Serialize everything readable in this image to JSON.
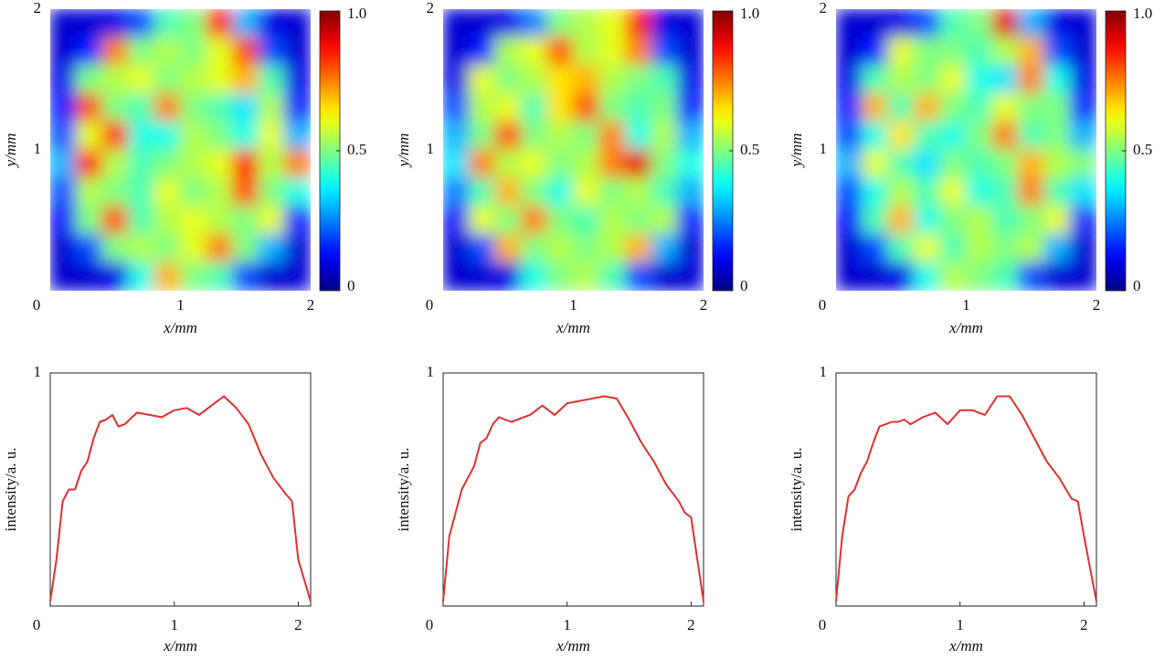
{
  "chart_data": [
    {
      "type": "heatmap",
      "xlabel": "x/mm",
      "ylabel": "y/mm",
      "xlim": [
        0,
        2
      ],
      "ylim": [
        0,
        2
      ],
      "xticks": [
        0,
        1,
        2
      ],
      "yticks": [
        1,
        2
      ],
      "colormap": "jet",
      "clim": [
        0,
        1
      ],
      "cticks": [
        0,
        0.5,
        {
          "value": 1,
          "label": "1.0"
        }
      ],
      "z": [
        [
          0.08,
          0.08,
          0.1,
          0.2,
          0.45,
          0.5,
          0.85,
          0.3,
          0.1,
          0.08
        ],
        [
          0.08,
          0.15,
          0.75,
          0.5,
          0.55,
          0.5,
          0.6,
          0.8,
          0.2,
          0.08
        ],
        [
          0.1,
          0.5,
          0.55,
          0.6,
          0.5,
          0.55,
          0.6,
          0.7,
          0.45,
          0.1
        ],
        [
          0.15,
          0.8,
          0.5,
          0.45,
          0.75,
          0.5,
          0.45,
          0.35,
          0.55,
          0.15
        ],
        [
          0.2,
          0.6,
          0.85,
          0.4,
          0.4,
          0.55,
          0.5,
          0.4,
          0.6,
          0.3
        ],
        [
          0.3,
          0.85,
          0.55,
          0.45,
          0.5,
          0.55,
          0.6,
          0.85,
          0.55,
          0.75
        ],
        [
          0.2,
          0.55,
          0.5,
          0.45,
          0.6,
          0.5,
          0.55,
          0.8,
          0.5,
          0.4
        ],
        [
          0.12,
          0.5,
          0.8,
          0.45,
          0.55,
          0.6,
          0.55,
          0.5,
          0.6,
          0.15
        ],
        [
          0.08,
          0.2,
          0.5,
          0.55,
          0.5,
          0.6,
          0.75,
          0.5,
          0.3,
          0.08
        ],
        [
          0.08,
          0.08,
          0.1,
          0.4,
          0.7,
          0.5,
          0.45,
          0.2,
          0.08,
          0.08
        ]
      ]
    },
    {
      "type": "heatmap",
      "xlabel": "x/mm",
      "ylabel": "y/mm",
      "xlim": [
        0,
        2
      ],
      "ylim": [
        0,
        2
      ],
      "xticks": [
        0,
        1,
        2
      ],
      "yticks": [
        1,
        2
      ],
      "colormap": "jet",
      "clim": [
        0,
        1
      ],
      "cticks": [
        0,
        0.5,
        {
          "value": 1,
          "label": "1.0"
        }
      ],
      "z": [
        [
          0.08,
          0.08,
          0.1,
          0.25,
          0.5,
          0.55,
          0.6,
          0.85,
          0.1,
          0.08
        ],
        [
          0.08,
          0.15,
          0.55,
          0.6,
          0.8,
          0.55,
          0.6,
          0.75,
          0.2,
          0.08
        ],
        [
          0.1,
          0.6,
          0.5,
          0.55,
          0.65,
          0.7,
          0.55,
          0.5,
          0.45,
          0.1
        ],
        [
          0.2,
          0.55,
          0.6,
          0.45,
          0.65,
          0.8,
          0.5,
          0.45,
          0.5,
          0.15
        ],
        [
          0.3,
          0.5,
          0.8,
          0.5,
          0.55,
          0.5,
          0.75,
          0.4,
          0.55,
          0.3
        ],
        [
          0.35,
          0.75,
          0.55,
          0.6,
          0.5,
          0.55,
          0.75,
          0.9,
          0.5,
          0.4
        ],
        [
          0.25,
          0.45,
          0.7,
          0.5,
          0.4,
          0.6,
          0.5,
          0.55,
          0.45,
          0.3
        ],
        [
          0.12,
          0.6,
          0.5,
          0.75,
          0.5,
          0.45,
          0.55,
          0.5,
          0.55,
          0.15
        ],
        [
          0.08,
          0.2,
          0.7,
          0.5,
          0.55,
          0.5,
          0.55,
          0.7,
          0.3,
          0.08
        ],
        [
          0.08,
          0.08,
          0.1,
          0.4,
          0.5,
          0.55,
          0.45,
          0.2,
          0.08,
          0.08
        ]
      ]
    },
    {
      "type": "heatmap",
      "xlabel": "x/mm",
      "ylabel": "y/mm",
      "xlim": [
        0,
        2
      ],
      "ylim": [
        0,
        2
      ],
      "xticks": [
        0,
        1,
        2
      ],
      "yticks": [
        1,
        2
      ],
      "colormap": "jet",
      "clim": [
        0,
        1
      ],
      "cticks": [
        0,
        0.5,
        {
          "value": 1,
          "label": "1.0"
        }
      ],
      "z": [
        [
          0.08,
          0.08,
          0.1,
          0.2,
          0.45,
          0.5,
          0.9,
          0.3,
          0.1,
          0.08
        ],
        [
          0.08,
          0.15,
          0.6,
          0.5,
          0.5,
          0.45,
          0.55,
          0.7,
          0.2,
          0.08
        ],
        [
          0.1,
          0.45,
          0.55,
          0.5,
          0.6,
          0.4,
          0.35,
          0.75,
          0.4,
          0.1
        ],
        [
          0.15,
          0.7,
          0.45,
          0.7,
          0.5,
          0.45,
          0.6,
          0.5,
          0.5,
          0.15
        ],
        [
          0.2,
          0.4,
          0.65,
          0.45,
          0.4,
          0.5,
          0.75,
          0.45,
          0.5,
          0.3
        ],
        [
          0.3,
          0.6,
          0.45,
          0.35,
          0.5,
          0.45,
          0.5,
          0.7,
          0.55,
          0.5
        ],
        [
          0.2,
          0.4,
          0.55,
          0.45,
          0.6,
          0.4,
          0.45,
          0.75,
          0.45,
          0.35
        ],
        [
          0.12,
          0.45,
          0.7,
          0.4,
          0.5,
          0.55,
          0.45,
          0.5,
          0.6,
          0.15
        ],
        [
          0.08,
          0.2,
          0.45,
          0.6,
          0.45,
          0.55,
          0.5,
          0.55,
          0.3,
          0.08
        ],
        [
          0.08,
          0.08,
          0.1,
          0.4,
          0.55,
          0.5,
          0.45,
          0.2,
          0.08,
          0.08
        ]
      ]
    },
    {
      "type": "line",
      "xlabel": "x/mm",
      "ylabel": "intensity/a. u.",
      "xlim": [
        0,
        2.1
      ],
      "ylim": [
        0,
        1
      ],
      "xticks": [
        0,
        1,
        2
      ],
      "yticks": [
        0,
        1
      ],
      "color": "#e03030",
      "x": [
        0,
        0.05,
        0.1,
        0.15,
        0.2,
        0.25,
        0.3,
        0.35,
        0.4,
        0.45,
        0.5,
        0.55,
        0.6,
        0.7,
        0.8,
        0.9,
        1.0,
        1.1,
        1.2,
        1.3,
        1.4,
        1.5,
        1.6,
        1.7,
        1.8,
        1.9,
        1.95,
        2.0,
        2.1
      ],
      "values": [
        0.02,
        0.2,
        0.45,
        0.5,
        0.5,
        0.58,
        0.62,
        0.72,
        0.79,
        0.8,
        0.82,
        0.77,
        0.78,
        0.83,
        0.82,
        0.81,
        0.84,
        0.85,
        0.82,
        0.86,
        0.9,
        0.85,
        0.78,
        0.65,
        0.55,
        0.48,
        0.45,
        0.2,
        0.02
      ]
    },
    {
      "type": "line",
      "xlabel": "x/mm",
      "ylabel": "intensity/a. u.",
      "xlim": [
        0,
        2.1
      ],
      "ylim": [
        0,
        1
      ],
      "xticks": [
        0,
        1,
        2
      ],
      "yticks": [
        0,
        1
      ],
      "color": "#e03030",
      "x": [
        0,
        0.05,
        0.1,
        0.15,
        0.2,
        0.25,
        0.3,
        0.35,
        0.4,
        0.45,
        0.5,
        0.55,
        0.6,
        0.7,
        0.8,
        0.9,
        1.0,
        1.1,
        1.2,
        1.3,
        1.4,
        1.5,
        1.6,
        1.7,
        1.8,
        1.9,
        1.95,
        2.0,
        2.1
      ],
      "values": [
        0.02,
        0.3,
        0.4,
        0.5,
        0.55,
        0.6,
        0.7,
        0.72,
        0.78,
        0.81,
        0.8,
        0.79,
        0.8,
        0.82,
        0.86,
        0.82,
        0.87,
        0.88,
        0.89,
        0.9,
        0.89,
        0.8,
        0.7,
        0.62,
        0.52,
        0.45,
        0.4,
        0.38,
        0.02
      ]
    },
    {
      "type": "line",
      "xlabel": "x/mm",
      "ylabel": "intensity/a. u.",
      "xlim": [
        0,
        2.1
      ],
      "ylim": [
        0,
        1
      ],
      "xticks": [
        0,
        1,
        2
      ],
      "yticks": [
        0,
        1
      ],
      "color": "#e03030",
      "x": [
        0,
        0.05,
        0.1,
        0.15,
        0.2,
        0.25,
        0.3,
        0.35,
        0.4,
        0.45,
        0.5,
        0.55,
        0.6,
        0.7,
        0.8,
        0.9,
        1.0,
        1.1,
        1.2,
        1.3,
        1.4,
        1.5,
        1.6,
        1.7,
        1.8,
        1.9,
        1.95,
        2.0,
        2.1
      ],
      "values": [
        0.02,
        0.3,
        0.47,
        0.5,
        0.57,
        0.62,
        0.7,
        0.77,
        0.78,
        0.79,
        0.79,
        0.8,
        0.78,
        0.81,
        0.83,
        0.78,
        0.84,
        0.84,
        0.82,
        0.9,
        0.9,
        0.82,
        0.72,
        0.62,
        0.55,
        0.46,
        0.45,
        0.3,
        0.02
      ]
    }
  ]
}
